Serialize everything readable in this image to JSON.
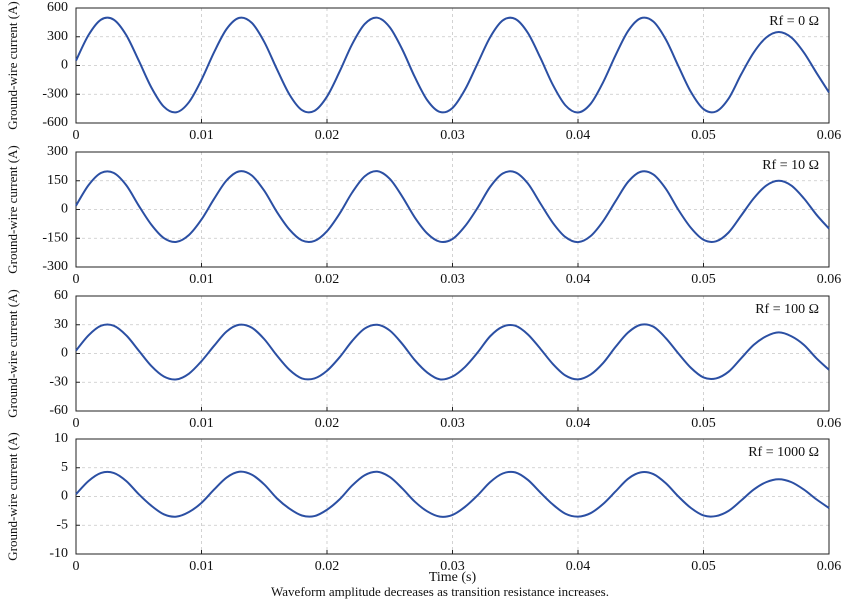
{
  "chart_data": [
    {
      "type": "line",
      "annotation": "Rf = 0 Ω",
      "ylabel": "Ground-wire current (A)",
      "color": "#2b4fa3",
      "grid": true,
      "xlim": [
        0,
        0.06
      ],
      "xticks": [
        0,
        0.01,
        0.02,
        0.03,
        0.04,
        0.05,
        0.06
      ],
      "ylim": [
        -600,
        600
      ],
      "yticks": [
        -600,
        -300,
        0,
        300,
        600
      ],
      "x": [
        0,
        0.001,
        0.002,
        0.003,
        0.004,
        0.005,
        0.006,
        0.007,
        0.008,
        0.009,
        0.01,
        0.011,
        0.012,
        0.013,
        0.014,
        0.015,
        0.016,
        0.017,
        0.018,
        0.019,
        0.02,
        0.021,
        0.022,
        0.023,
        0.024,
        0.025,
        0.026,
        0.027,
        0.028,
        0.029,
        0.03,
        0.031,
        0.032,
        0.033,
        0.034,
        0.035,
        0.036,
        0.037,
        0.038,
        0.039,
        0.04,
        0.041,
        0.042,
        0.043,
        0.044,
        0.045,
        0.046,
        0.047,
        0.048,
        0.049,
        0.05,
        0.051,
        0.052,
        0.053,
        0.054,
        0.055,
        0.056,
        0.057,
        0.058,
        0.059,
        0.06
      ],
      "values": [
        51,
        318,
        479,
        479,
        318,
        51,
        -228,
        -430,
        -488,
        -383,
        -149,
        138,
        381,
        497,
        446,
        246,
        -36,
        -301,
        -465,
        -473,
        -324,
        -65,
        221,
        432,
        499,
        399,
        167,
        -121,
        -364,
        -485,
        -443,
        -251,
        22,
        295,
        470,
        486,
        341,
        81,
        -203,
        -416,
        -490,
        -401,
        -175,
        109,
        362,
        493,
        459,
        271,
        -7,
        -277,
        -455,
        -480,
        -345,
        -93,
        135,
        292,
        350,
        292,
        135,
        -76,
        -281
      ]
    },
    {
      "type": "line",
      "annotation": "Rf = 10 Ω",
      "ylabel": "Ground-wire current (A)",
      "color": "#2b4fa3",
      "grid": true,
      "xlim": [
        0,
        0.06
      ],
      "xticks": [
        0,
        0.01,
        0.02,
        0.03,
        0.04,
        0.05,
        0.06
      ],
      "ylim": [
        -300,
        300
      ],
      "yticks": [
        -300,
        -150,
        0,
        150,
        300
      ],
      "x": [
        0,
        0.001,
        0.002,
        0.003,
        0.004,
        0.005,
        0.006,
        0.007,
        0.008,
        0.009,
        0.01,
        0.011,
        0.012,
        0.013,
        0.014,
        0.015,
        0.016,
        0.017,
        0.018,
        0.019,
        0.02,
        0.021,
        0.022,
        0.023,
        0.024,
        0.025,
        0.026,
        0.027,
        0.028,
        0.029,
        0.03,
        0.031,
        0.032,
        0.033,
        0.034,
        0.035,
        0.036,
        0.037,
        0.038,
        0.039,
        0.04,
        0.041,
        0.042,
        0.043,
        0.044,
        0.045,
        0.046,
        0.047,
        0.048,
        0.049,
        0.05,
        0.051,
        0.052,
        0.053,
        0.054,
        0.055,
        0.056,
        0.057,
        0.058,
        0.059,
        0.06
      ],
      "values": [
        20,
        127,
        191,
        191,
        127,
        20,
        -79,
        -149,
        -169,
        -133,
        -52,
        55,
        152,
        199,
        178,
        98,
        -12,
        -104,
        -161,
        -164,
        -113,
        -22,
        88,
        173,
        200,
        160,
        67,
        -42,
        -126,
        -168,
        -154,
        -87,
        9,
        118,
        188,
        194,
        136,
        32,
        -70,
        -144,
        -170,
        -139,
        -61,
        44,
        145,
        197,
        183,
        108,
        -2,
        -96,
        -158,
        -166,
        -120,
        -32,
        58,
        125,
        150,
        125,
        58,
        -27,
        -100
      ]
    },
    {
      "type": "line",
      "annotation": "Rf = 100 Ω",
      "ylabel": "Ground-wire current (A)",
      "color": "#2b4fa3",
      "grid": true,
      "xlim": [
        0,
        0.06
      ],
      "xticks": [
        0,
        0.01,
        0.02,
        0.03,
        0.04,
        0.05,
        0.06
      ],
      "ylim": [
        -60,
        60
      ],
      "yticks": [
        -60,
        -30,
        0,
        30,
        60
      ],
      "x": [
        0,
        0.001,
        0.002,
        0.003,
        0.004,
        0.005,
        0.006,
        0.007,
        0.008,
        0.009,
        0.01,
        0.011,
        0.012,
        0.013,
        0.014,
        0.015,
        0.016,
        0.017,
        0.018,
        0.019,
        0.02,
        0.021,
        0.022,
        0.023,
        0.024,
        0.025,
        0.026,
        0.027,
        0.028,
        0.029,
        0.03,
        0.031,
        0.032,
        0.033,
        0.034,
        0.035,
        0.036,
        0.037,
        0.038,
        0.039,
        0.04,
        0.041,
        0.042,
        0.043,
        0.044,
        0.045,
        0.046,
        0.047,
        0.048,
        0.049,
        0.05,
        0.051,
        0.052,
        0.053,
        0.054,
        0.055,
        0.056,
        0.057,
        0.058,
        0.059,
        0.06
      ],
      "values": [
        3,
        19,
        29,
        29,
        19,
        3,
        -13,
        -24,
        -27,
        -21,
        -8,
        8,
        23,
        30,
        27,
        15,
        -2,
        -17,
        -26,
        -26,
        -18,
        -4,
        13,
        26,
        30,
        24,
        10,
        -7,
        -20,
        -27,
        -24,
        -14,
        1,
        18,
        28,
        29,
        20,
        5,
        -11,
        -23,
        -27,
        -22,
        -10,
        7,
        22,
        30,
        28,
        16,
        0,
        -15,
        -25,
        -26,
        -19,
        -5,
        9,
        18,
        22,
        18,
        9,
        -5,
        -17
      ]
    },
    {
      "type": "line",
      "annotation": "Rf = 1000 Ω",
      "ylabel": "Ground-wire current (A)",
      "xlabel": "Time (s)",
      "color": "#2b4fa3",
      "grid": true,
      "xlim": [
        0,
        0.06
      ],
      "xticks": [
        0,
        0.01,
        0.02,
        0.03,
        0.04,
        0.05,
        0.06
      ],
      "ylim": [
        -10,
        10
      ],
      "yticks": [
        -10,
        -5,
        0,
        5,
        10
      ],
      "x": [
        0,
        0.001,
        0.002,
        0.003,
        0.004,
        0.005,
        0.006,
        0.007,
        0.008,
        0.009,
        0.01,
        0.011,
        0.012,
        0.013,
        0.014,
        0.015,
        0.016,
        0.017,
        0.018,
        0.019,
        0.02,
        0.021,
        0.022,
        0.023,
        0.024,
        0.025,
        0.026,
        0.027,
        0.028,
        0.029,
        0.03,
        0.031,
        0.032,
        0.033,
        0.034,
        0.035,
        0.036,
        0.037,
        0.038,
        0.039,
        0.04,
        0.041,
        0.042,
        0.043,
        0.044,
        0.045,
        0.046,
        0.047,
        0.048,
        0.049,
        0.05,
        0.051,
        0.052,
        0.053,
        0.054,
        0.055,
        0.056,
        0.057,
        0.058,
        0.059,
        0.06
      ],
      "values": [
        0.4,
        2.7,
        4.1,
        4.1,
        2.7,
        0.4,
        -1.6,
        -3.1,
        -3.5,
        -2.7,
        -1.1,
        1.2,
        3.3,
        4.3,
        3.8,
        2.1,
        -0.3,
        -2.1,
        -3.3,
        -3.4,
        -2.3,
        -0.5,
        1.9,
        3.7,
        4.3,
        3.4,
        1.4,
        -0.9,
        -2.6,
        -3.5,
        -3.2,
        -1.8,
        0.2,
        2.5,
        4.0,
        4.2,
        2.9,
        0.7,
        -1.4,
        -3.0,
        -3.5,
        -2.9,
        -1.3,
        0.9,
        3.1,
        4.2,
        3.9,
        2.3,
        0,
        -2.0,
        -3.3,
        -3.4,
        -2.5,
        -0.7,
        1.2,
        2.5,
        3.0,
        2.5,
        1.2,
        -0.5,
        -2.0
      ]
    }
  ],
  "caption": "Waveform amplitude decreases as transition resistance increases."
}
